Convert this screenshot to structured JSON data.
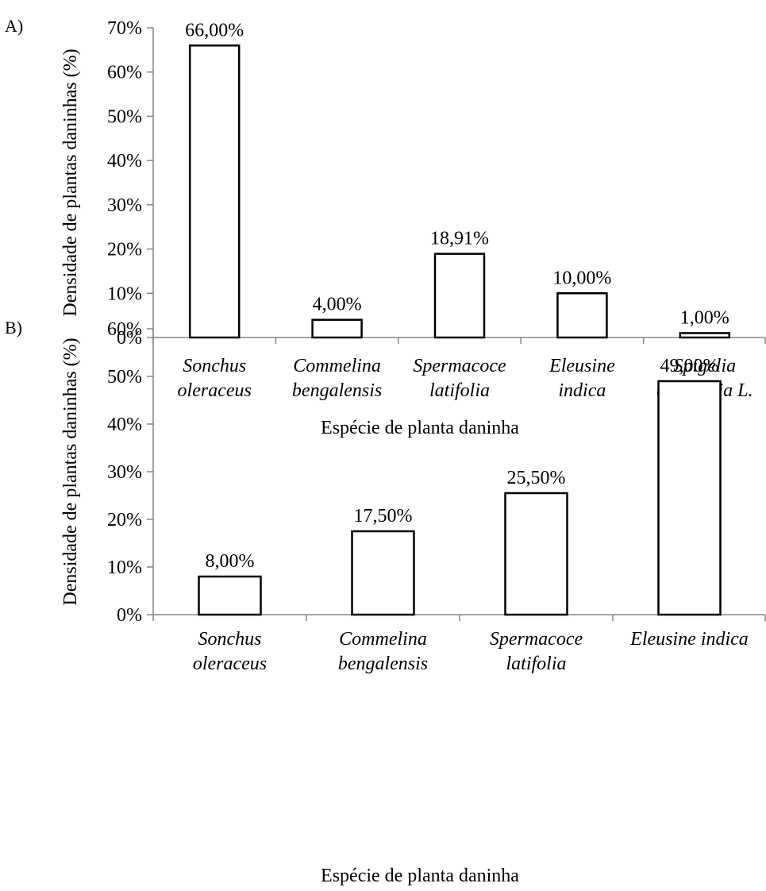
{
  "chart_data": [
    {
      "panel_label": "A)",
      "type": "bar",
      "ylabel": "Densidade de plantas daninhas (%)",
      "xlabel": "Espécie de planta daninha",
      "ylim": [
        0,
        70
      ],
      "yticks": [
        0,
        10,
        20,
        30,
        40,
        50,
        60,
        70
      ],
      "ytick_labels": [
        "0%",
        "10%",
        "20%",
        "30%",
        "40%",
        "50%",
        "60%",
        "70%"
      ],
      "categories": [
        [
          "Sonchus",
          "oleraceus"
        ],
        [
          "Commelina",
          "bengalensis"
        ],
        [
          "Spermacoce",
          "latifolia"
        ],
        [
          "Eleusine",
          "indica"
        ],
        [
          "Spigelia",
          "anthelmia L."
        ]
      ],
      "values": [
        66.0,
        4.0,
        18.91,
        10.0,
        1.0
      ],
      "data_labels": [
        "66,00%",
        "4,00%",
        "18,91%",
        "10,00%",
        "1,00%"
      ],
      "grid": false,
      "legend": "none"
    },
    {
      "panel_label": "B)",
      "type": "bar",
      "ylabel": "Densidade de plantas daninhas (%)",
      "xlabel": "Espécie de planta daninha",
      "ylim": [
        0,
        60
      ],
      "yticks": [
        0,
        10,
        20,
        30,
        40,
        50,
        60
      ],
      "ytick_labels": [
        "0%",
        "10%",
        "20%",
        "30%",
        "40%",
        "50%",
        "60%"
      ],
      "categories": [
        [
          "Sonchus",
          "oleraceus"
        ],
        [
          "Commelina",
          "bengalensis"
        ],
        [
          "Spermacoce",
          "latifolia"
        ],
        [
          "Eleusine indica"
        ]
      ],
      "values": [
        8.0,
        17.5,
        25.5,
        49.0
      ],
      "data_labels": [
        "8,00%",
        "17,50%",
        "25,50%",
        "49,00%"
      ],
      "grid": false,
      "legend": "none"
    }
  ],
  "colors": {
    "bar_fill": "#ffffff",
    "bar_stroke": "#000000",
    "axis": "#868686"
  }
}
